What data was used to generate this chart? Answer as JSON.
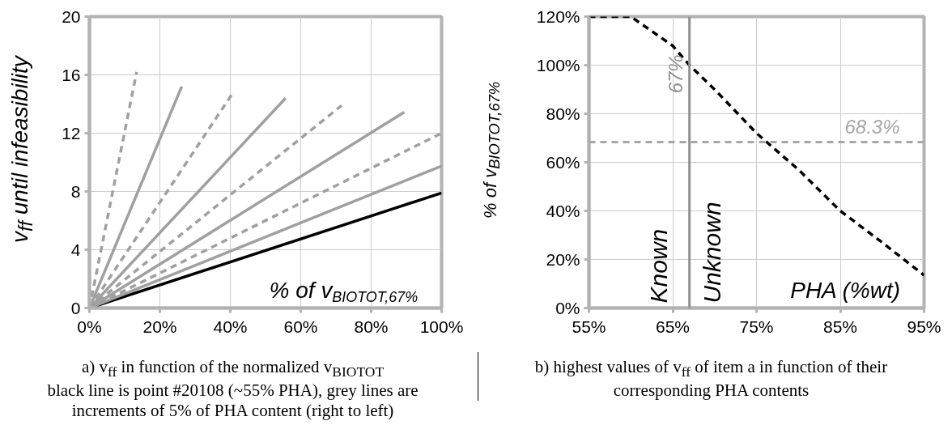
{
  "chart_data": [
    {
      "type": "line",
      "xlabel": "% of v$_{BIOTOT,67%}$",
      "ylabel": "v$_{ff}$ until infeasibility",
      "xlim": [
        0,
        100
      ],
      "ylim": [
        0,
        20
      ],
      "xticks": [
        {
          "value": 0,
          "label": "0%"
        },
        {
          "value": 20,
          "label": "20%"
        },
        {
          "value": 40,
          "label": "40%"
        },
        {
          "value": 60,
          "label": "60%"
        },
        {
          "value": 80,
          "label": "80%"
        },
        {
          "value": 100,
          "label": "100%"
        }
      ],
      "yticks": [
        0,
        4,
        8,
        12,
        16,
        20
      ],
      "grid": true,
      "series": [
        {
          "x": [
            0,
            100
          ],
          "values": [
            0,
            7.9
          ],
          "color": "#000000",
          "line_style": "solid"
        },
        {
          "x": [
            0,
            100
          ],
          "values": [
            0,
            9.75
          ],
          "color": "#a0a0a0",
          "line_style": "solid"
        },
        {
          "x": [
            0,
            100
          ],
          "values": [
            0,
            12.0
          ],
          "color": "#a0a0a0",
          "line_style": "dashed"
        },
        {
          "x": [
            0,
            89.4
          ],
          "values": [
            0,
            13.45
          ],
          "color": "#a0a0a0",
          "line_style": "solid"
        },
        {
          "x": [
            0,
            71.6
          ],
          "values": [
            0,
            13.9
          ],
          "color": "#a0a0a0",
          "line_style": "dashed"
        },
        {
          "x": [
            0,
            55.7
          ],
          "values": [
            0,
            14.4
          ],
          "color": "#a0a0a0",
          "line_style": "solid"
        },
        {
          "x": [
            0,
            40.7
          ],
          "values": [
            0,
            14.75
          ],
          "color": "#a0a0a0",
          "line_style": "dashed"
        },
        {
          "x": [
            0,
            26.2
          ],
          "values": [
            0,
            15.2
          ],
          "color": "#a0a0a0",
          "line_style": "solid"
        },
        {
          "x": [
            0,
            13.4
          ],
          "values": [
            0,
            16.2
          ],
          "color": "#a0a0a0",
          "line_style": "dashed"
        }
      ],
      "annotations": [
        "a) v$_{ff}$ in function of the normalized v$_{BIOTOT}$\nblack line is point #20108 (~55% PHA), grey lines are\nincrements of 5% of PHA content (right to left)"
      ]
    },
    {
      "type": "line",
      "xlabel": "PHA (%wt)",
      "ylabel": "% of v$_{BIOTOT,67%}$",
      "xlim": [
        55,
        95
      ],
      "ylim": [
        0,
        120
      ],
      "xticks": [
        {
          "value": 55,
          "label": "55%"
        },
        {
          "value": 65,
          "label": "65%"
        },
        {
          "value": 75,
          "label": "75%"
        },
        {
          "value": 85,
          "label": "85%"
        },
        {
          "value": 95,
          "label": "95%"
        }
      ],
      "yticks": [
        {
          "value": 0,
          "label": "0%"
        },
        {
          "value": 20,
          "label": "20%"
        },
        {
          "value": 40,
          "label": "40%"
        },
        {
          "value": 60,
          "label": "60%"
        },
        {
          "value": 80,
          "label": "80%"
        },
        {
          "value": 100,
          "label": "100%"
        },
        {
          "value": 120,
          "label": "120%"
        }
      ],
      "grid": true,
      "series": [
        {
          "x": [
            55,
            60,
            65,
            67,
            70,
            75,
            80,
            85,
            90,
            95
          ],
          "values": [
            120,
            120,
            108,
            100,
            90,
            72,
            57,
            40,
            27,
            13.5
          ],
          "color": "#000000",
          "line_style": "dashed"
        }
      ],
      "ref_lines": [
        {
          "axis": "x",
          "value": 67,
          "label": "67%",
          "color": "#909090",
          "line_style": "solid"
        },
        {
          "axis": "y",
          "value": 68.3,
          "label": "68.3%",
          "color": "#a6a6a6",
          "line_style": "dashed"
        }
      ],
      "annotations": [
        "Known",
        "Unknown",
        "b) highest values of v$_{ff}$ of item a in function of their\ncorresponding PHA contents"
      ]
    }
  ]
}
